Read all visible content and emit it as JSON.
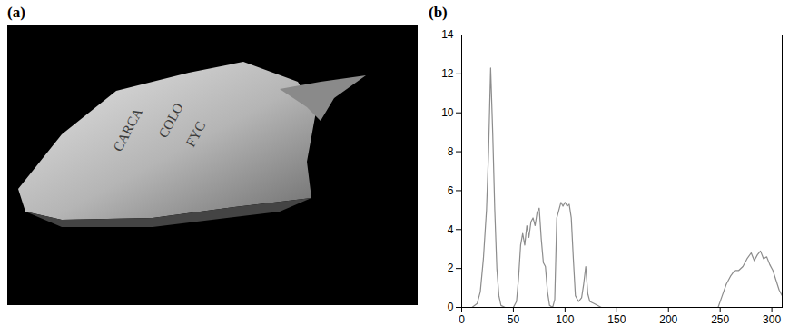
{
  "panel_a": {
    "label": "(a)",
    "image_texts": [
      "CARCA",
      "COLO",
      "FYC"
    ]
  },
  "chart_data": {
    "type": "line",
    "title": "(b)",
    "color": "#8c8c8c",
    "grid": false,
    "x": [
      0,
      10,
      15,
      18,
      21,
      24,
      26,
      28,
      30,
      32,
      34,
      36,
      38,
      42,
      50,
      53,
      55,
      57,
      59,
      61,
      63,
      65,
      67,
      69,
      71,
      73,
      75,
      77,
      79,
      81,
      83,
      85,
      88,
      90,
      92,
      94,
      96,
      98,
      100,
      102,
      104,
      106,
      108,
      110,
      113,
      116,
      118,
      120,
      122,
      124,
      128,
      135,
      150,
      200,
      248,
      252,
      256,
      260,
      264,
      268,
      272,
      276,
      280,
      283,
      286,
      289,
      292,
      295,
      298,
      301,
      304,
      307,
      310
    ],
    "values": [
      0,
      0,
      0.2,
      0.8,
      2.5,
      5,
      8,
      12.3,
      9,
      5,
      2,
      0.6,
      0.1,
      0,
      0,
      0.3,
      1.5,
      3.2,
      3.8,
      3.2,
      4.2,
      3.6,
      4.4,
      4.6,
      4.2,
      4.9,
      5.1,
      3.5,
      2.3,
      2.1,
      0.8,
      0.1,
      0,
      0.4,
      4.6,
      5.0,
      5.4,
      5.2,
      5.4,
      5.2,
      5.3,
      4.6,
      2.5,
      0.6,
      0.3,
      0.5,
      1.2,
      2.1,
      0.7,
      0.3,
      0.2,
      0,
      0,
      0,
      0,
      0.6,
      1.2,
      1.6,
      1.9,
      1.9,
      2.1,
      2.5,
      2.8,
      2.4,
      2.7,
      2.9,
      2.5,
      2.6,
      2.2,
      1.9,
      1.4,
      0.9,
      0.6
    ],
    "xlim": [
      0,
      310
    ],
    "xticks": [
      0,
      50,
      100,
      150,
      200,
      250,
      300
    ],
    "ylim": [
      0,
      14
    ],
    "yticks": [
      0,
      2,
      4,
      6,
      8,
      10,
      12,
      14
    ]
  }
}
